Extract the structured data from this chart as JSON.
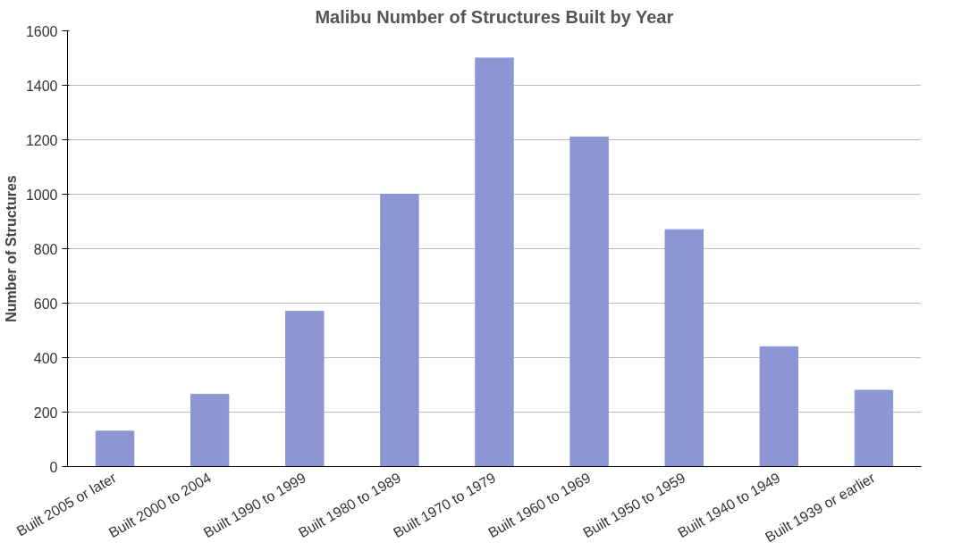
{
  "chart_data": {
    "type": "bar",
    "title": "Malibu Number of Structures Built by Year",
    "ylabel": "Number of Structures",
    "categories": [
      "Built 2005 or later",
      "Built 2000 to 2004",
      "Built 1990 to 1999",
      "Built 1980 to 1989",
      "Built 1970 to 1979",
      "Built 1960 to 1969",
      "Built 1950 to 1959",
      "Built 1940 to 1949",
      "Built 1939 or earlier"
    ],
    "values": [
      130,
      265,
      570,
      1000,
      1500,
      1210,
      870,
      440,
      280
    ],
    "color": "#8c96d2",
    "ylim": [
      0,
      1600
    ],
    "yticks": [
      0,
      200,
      400,
      600,
      800,
      1000,
      1200,
      1400,
      1600
    ],
    "grid": "y"
  }
}
